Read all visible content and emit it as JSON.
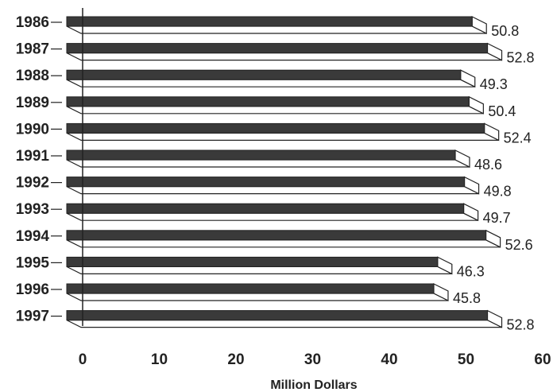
{
  "chart_data": {
    "type": "bar",
    "orientation": "horizontal",
    "style": "3d",
    "categories": [
      "1986",
      "1987",
      "1988",
      "1989",
      "1990",
      "1991",
      "1992",
      "1993",
      "1994",
      "1995",
      "1996",
      "1997"
    ],
    "values": [
      50.8,
      52.8,
      49.3,
      50.4,
      52.4,
      48.6,
      49.8,
      49.7,
      52.6,
      46.3,
      45.8,
      52.8
    ],
    "value_labels": [
      "50.8",
      "52.8",
      "49.3",
      "50.4",
      "52.4",
      "48.6",
      "49.8",
      "49.7",
      "52.6",
      "46.3",
      "45.8",
      "52.8"
    ],
    "xlim": [
      0,
      60
    ],
    "x_ticks": [
      0,
      10,
      20,
      30,
      40,
      50,
      60
    ],
    "x_tick_labels": [
      "0",
      "10",
      "20",
      "30",
      "40",
      "50",
      "60"
    ],
    "title": "",
    "xlabel": "Million Dollars",
    "ylabel": "",
    "grid": false,
    "legend": "none",
    "colors": {
      "bar_face": "#3a3a3a",
      "bar_side": "#ffffff",
      "outline": "#222222",
      "text": "#222222",
      "background": "#ffffff"
    }
  }
}
